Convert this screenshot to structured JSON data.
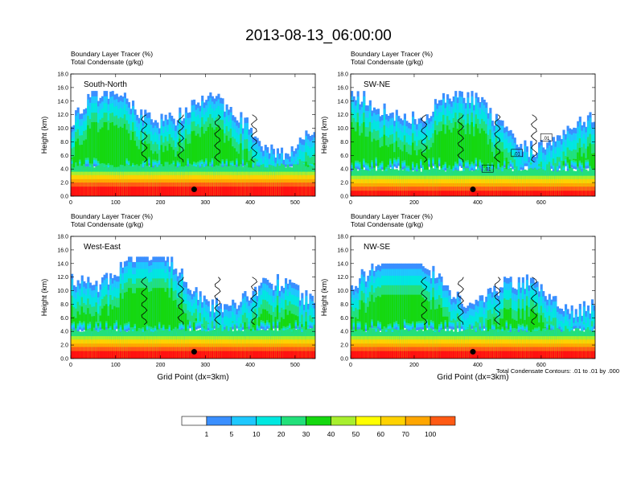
{
  "figure": {
    "title": "2013-08-13_06:00:00",
    "contour_note": "Total Condensate Contours: .01 to .01 by .000"
  },
  "colorbar": {
    "labels": [
      "1",
      "5",
      "10",
      "20",
      "30",
      "40",
      "50",
      "60",
      "70",
      "100"
    ],
    "colors": [
      "#ffffff",
      "#3a8fff",
      "#1ec8ff",
      "#00e8e0",
      "#22e07a",
      "#15d80f",
      "#a8ef2e",
      "#ffff00",
      "#ffd200",
      "#ffa600",
      "#ff5a14",
      "#ff1010"
    ]
  },
  "chart_data": [
    {
      "type": "heatmap",
      "panel": "South-North",
      "title": "Boundary Layer Tracer   (%)",
      "subtitle": "Total Condensate   (g/kg)",
      "xlabel": "",
      "ylabel": "Height (km)",
      "xlim": [
        0,
        545
      ],
      "ylim": [
        0,
        18
      ],
      "xticks": [
        "0",
        "100",
        "200",
        "300",
        "400",
        "500"
      ],
      "yticks": [
        "0.0",
        "2.0",
        "4.0",
        "6.0",
        "8.0",
        "10.0",
        "12.0",
        "14.0",
        "16.0",
        "18.0"
      ],
      "marker_x": 275,
      "surface_tracer_top_km": 2.8,
      "cloud_top_km": 15.5
    },
    {
      "type": "heatmap",
      "panel": "SW-NE",
      "title": "Boundary Layer Tracer   (%)",
      "subtitle": "Total Condensate   (g/kg)",
      "xlabel": "",
      "ylabel": "Height (km)",
      "xlim": [
        0,
        770
      ],
      "ylim": [
        0,
        18
      ],
      "xticks": [
        "0",
        "200",
        "400",
        "600"
      ],
      "yticks": [
        "0.0",
        "2.0",
        "4.0",
        "6.0",
        "8.0",
        "10.0",
        "12.0",
        "14.0",
        "16.0",
        "18.0"
      ],
      "marker_x": 385,
      "contour_labels": [
        ".01",
        ".01",
        ".01"
      ],
      "surface_tracer_top_km": 2.2,
      "cloud_top_km": 15.5
    },
    {
      "type": "heatmap",
      "panel": "West-East",
      "title": "Boundary Layer Tracer   (%)",
      "subtitle": "Total Condensate   (g/kg)",
      "xlabel": "Grid Point (dx=3km)",
      "ylabel": "Height (km)",
      "xlim": [
        0,
        545
      ],
      "ylim": [
        0,
        18
      ],
      "xticks": [
        "0",
        "100",
        "200",
        "300",
        "400",
        "500"
      ],
      "yticks": [
        "0.0",
        "2.0",
        "4.0",
        "6.0",
        "8.0",
        "10.0",
        "12.0",
        "14.0",
        "16.0",
        "18.0"
      ],
      "marker_x": 275,
      "surface_tracer_top_km": 2.5,
      "cloud_top_km": 15.0
    },
    {
      "type": "heatmap",
      "panel": "NW-SE",
      "title": "Boundary Layer Tracer   (%)",
      "subtitle": "Total Condensate   (g/kg)",
      "xlabel": "Grid Point (dx=3km)",
      "ylabel": "Height (km)",
      "xlim": [
        0,
        770
      ],
      "ylim": [
        0,
        18
      ],
      "xticks": [
        "0",
        "200",
        "400",
        "600"
      ],
      "yticks": [
        "0.0",
        "2.0",
        "4.0",
        "6.0",
        "8.0",
        "10.0",
        "12.0",
        "14.0",
        "16.0",
        "18.0"
      ],
      "marker_x": 385,
      "surface_tracer_top_km": 2.5,
      "cloud_top_km": 14.0
    }
  ]
}
